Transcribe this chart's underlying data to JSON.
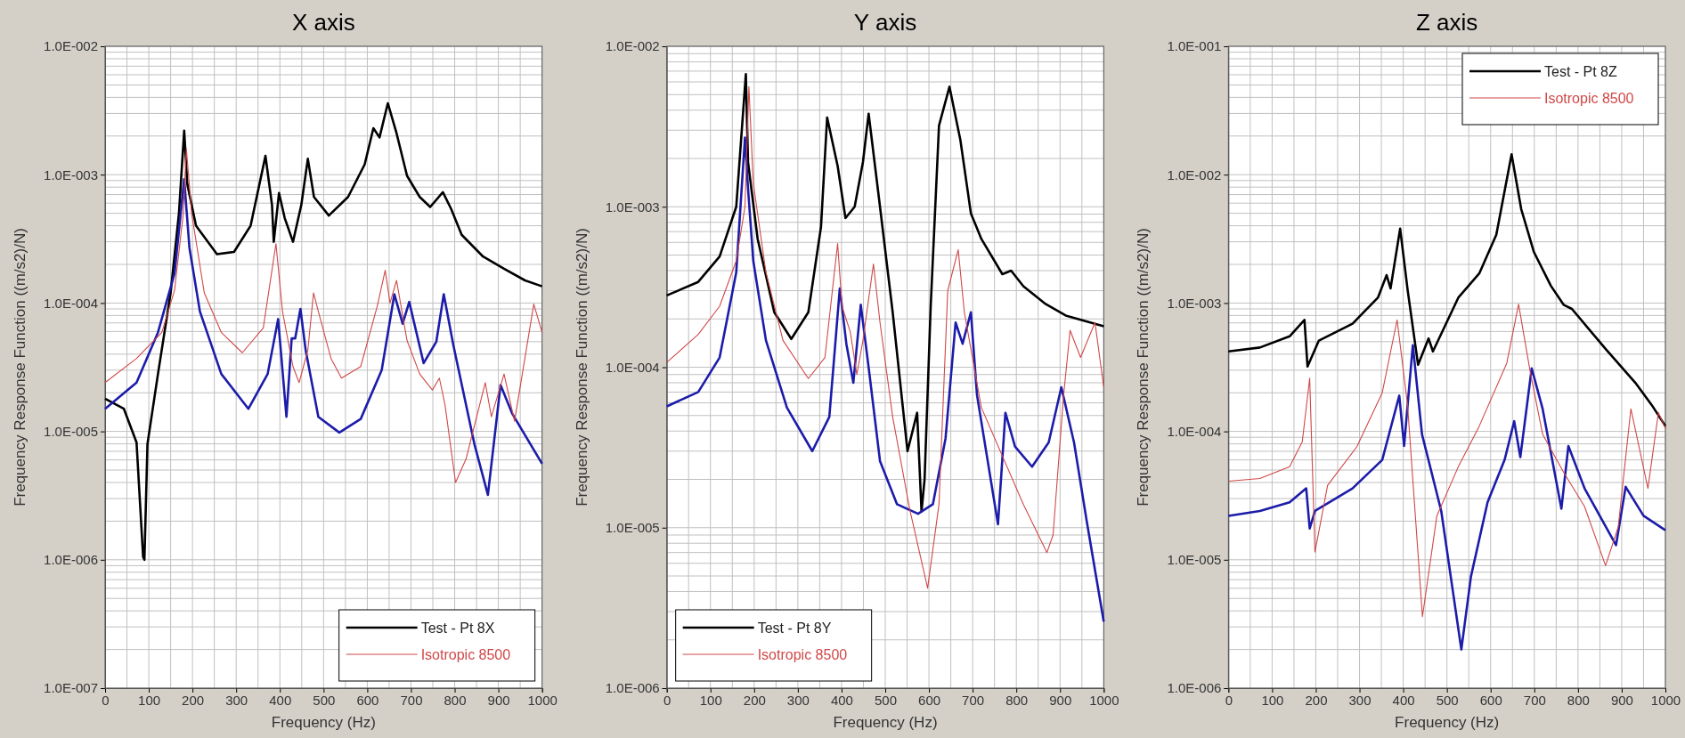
{
  "chart_data": [
    {
      "type": "line",
      "title": "X axis",
      "xlabel": "Frequency (Hz)",
      "ylabel": "Frequency Response Function ((m/s2)/N)",
      "log": "y",
      "grid": true,
      "legend": "bottom right",
      "xlim": [
        0,
        1000
      ],
      "xticks": [
        0,
        100,
        200,
        300,
        400,
        500,
        600,
        700,
        800,
        900,
        1000
      ],
      "ylim": [
        1e-07,
        0.01
      ],
      "yticks": [
        {
          "value": 1e-07,
          "label": "1.0E-007"
        },
        {
          "value": 1e-06,
          "label": "1.0E-006"
        },
        {
          "value": 1e-05,
          "label": "1.0E-005"
        },
        {
          "value": 0.0001,
          "label": "1.0E-004"
        },
        {
          "value": 0.001,
          "label": "1.0E-003"
        },
        {
          "value": 0.01,
          "label": "1.0E-002"
        }
      ],
      "series": [
        {
          "name": "Test - Pt 8X",
          "color": "#000000",
          "x": [
            0,
            43,
            72,
            87,
            90,
            97,
            121,
            150,
            169,
            181,
            188,
            208,
            256,
            295,
            333,
            367,
            382,
            386,
            398,
            411,
            430,
            449,
            464,
            478,
            512,
            556,
            594,
            614,
            628,
            647,
            667,
            691,
            720,
            744,
            773,
            792,
            816,
            865,
            913,
            961,
            1000
          ],
          "values": [
            1.8e-05,
            1.5e-05,
            8.2e-06,
            1.05e-06,
            1e-06,
            8e-06,
            2.8e-05,
            0.00012,
            0.0005,
            0.0022,
            0.00085,
            0.0004,
            0.00024,
            0.00025,
            0.0004,
            0.0014,
            0.00058,
            0.0003,
            0.00072,
            0.00046,
            0.0003,
            0.00058,
            0.00133,
            0.00067,
            0.00048,
            0.00067,
            0.0012,
            0.0023,
            0.00195,
            0.0036,
            0.0021,
            0.00098,
            0.00067,
            0.00056,
            0.00073,
            0.00054,
            0.00034,
            0.00023,
            0.000185,
            0.00015,
            0.000135
          ]
        },
        {
          "name": "Isotropic 8500",
          "color": "#d04848",
          "x": [
            0,
            72,
            130,
            159,
            179,
            186,
            198,
            227,
            266,
            314,
            362,
            391,
            406,
            430,
            444,
            464,
            477,
            488,
            517,
            541,
            585,
            623,
            641,
            652,
            667,
            691,
            720,
            749,
            765,
            778,
            802,
            826,
            870,
            884,
            913,
            937,
            981,
            1000
          ],
          "values": [
            2.4e-05,
            3.7e-05,
            5.9e-05,
            0.000126,
            0.0005,
            0.0016,
            0.0005,
            0.00012,
            5.9e-05,
            4.1e-05,
            6.4e-05,
            0.00029,
            8.6e-05,
            3.2e-05,
            2.4e-05,
            4.3e-05,
            0.00012,
            8.6e-05,
            3.7e-05,
            2.6e-05,
            3.2e-05,
            9.5e-05,
            0.00018,
            0.0001,
            0.00015,
            5.1e-05,
            2.8e-05,
            2.1e-05,
            2.6e-05,
            1.6e-05,
            4e-06,
            6.1e-06,
            2.4e-05,
            1.3e-05,
            2.8e-05,
            1.2e-05,
            9.8e-05,
            5.9e-05
          ]
        },
        {
          "color": "#1c1caa",
          "x": [
            0,
            72,
            121,
            159,
            181,
            193,
            217,
            266,
            328,
            372,
            396,
            415,
            427,
            435,
            447,
            459,
            488,
            536,
            585,
            633,
            662,
            681,
            696,
            729,
            758,
            775,
            797,
            845,
            876,
            905,
            932,
            1000
          ],
          "values": [
            1.5e-05,
            2.4e-05,
            5.9e-05,
            0.00017,
            0.00092,
            0.00027,
            8.6e-05,
            2.8e-05,
            1.5e-05,
            2.8e-05,
            7.5e-05,
            1.3e-05,
            5.3e-05,
            5.3e-05,
            9e-05,
            4.3e-05,
            1.3e-05,
            9.8e-06,
            1.25e-05,
            3e-05,
            0.000117,
            6.9e-05,
            0.000102,
            3.4e-05,
            5e-05,
            0.000117,
            4.7e-05,
            8e-06,
            3.2e-06,
            2.3e-05,
            1.37e-05,
            5.6e-06
          ]
        }
      ]
    },
    {
      "type": "line",
      "title": "Y axis",
      "xlabel": "Frequency (Hz)",
      "ylabel": "Frequency Response Function ((m/s2)/N)",
      "log": "y",
      "grid": true,
      "legend": "bottom left",
      "xlim": [
        0,
        1000
      ],
      "xticks": [
        0,
        100,
        200,
        300,
        400,
        500,
        600,
        700,
        800,
        900,
        1000
      ],
      "ylim": [
        1e-06,
        0.01
      ],
      "yticks": [
        {
          "value": 1e-06,
          "label": "1.0E-006"
        },
        {
          "value": 1e-05,
          "label": "1.0E-005"
        },
        {
          "value": 0.0001,
          "label": "1.0E-004"
        },
        {
          "value": 0.001,
          "label": "1.0E-003"
        },
        {
          "value": 0.01,
          "label": "1.0E-002"
        }
      ],
      "series": [
        {
          "name": "Test - Pt 8Y",
          "color": "#000000",
          "x": [
            0,
            72,
            121,
            159,
            181,
            186,
            208,
            246,
            285,
            324,
            353,
            367,
            391,
            409,
            430,
            449,
            462,
            488,
            517,
            551,
            573,
            583,
            590,
            604,
            623,
            647,
            672,
            696,
            720,
            768,
            788,
            816,
            865,
            913,
            1000
          ],
          "values": [
            0.00028,
            0.00034,
            0.00049,
            0.001,
            0.0067,
            0.0019,
            0.00063,
            0.00022,
            0.00015,
            0.00022,
            0.00075,
            0.0036,
            0.0018,
            0.00085,
            0.001,
            0.0019,
            0.0038,
            0.001,
            0.00022,
            3e-05,
            5.2e-05,
            1.26e-05,
            2e-05,
            0.00024,
            0.0032,
            0.0056,
            0.0026,
            0.00091,
            0.00063,
            0.00038,
            0.0004,
            0.00032,
            0.00025,
            0.00021,
            0.00018
          ]
        },
        {
          "name": "Isotropic 8500",
          "color": "#d04848",
          "x": [
            0,
            72,
            121,
            159,
            179,
            188,
            198,
            227,
            266,
            324,
            362,
            391,
            401,
            420,
            435,
            449,
            473,
            488,
            517,
            556,
            597,
            623,
            643,
            667,
            681,
            720,
            768,
            816,
            870,
            884,
            908,
            923,
            947,
            980,
            1000
          ],
          "values": [
            0.000107,
            0.00016,
            0.00024,
            0.00046,
            0.001,
            0.0056,
            0.0014,
            0.00039,
            0.000147,
            8.5e-05,
            0.000115,
            0.00059,
            0.00024,
            0.000166,
            9e-05,
            0.000147,
            0.00044,
            0.00019,
            4.9e-05,
            1.3e-05,
            4.2e-06,
            1.4e-05,
            0.0003,
            0.00054,
            0.00022,
            5.6e-05,
            2.8e-05,
            1.4e-05,
            7e-06,
            9e-06,
            6.6e-05,
            0.00017,
            0.000115,
            0.00019,
            7.5e-05
          ]
        },
        {
          "color": "#1c1caa",
          "x": [
            0,
            72,
            121,
            159,
            179,
            186,
            198,
            227,
            275,
            333,
            372,
            396,
            411,
            427,
            444,
            464,
            488,
            527,
            575,
            609,
            638,
            661,
            677,
            696,
            710,
            758,
            775,
            797,
            836,
            874,
            903,
            932,
            961,
            1000
          ],
          "values": [
            5.7e-05,
            7e-05,
            0.000115,
            0.00039,
            0.0027,
            0.0013,
            0.00046,
            0.000147,
            5.6e-05,
            3e-05,
            4.9e-05,
            0.00031,
            0.00014,
            8e-05,
            0.000245,
            9e-05,
            2.6e-05,
            1.4e-05,
            1.22e-05,
            1.4e-05,
            3.6e-05,
            0.00019,
            0.00014,
            0.00022,
            6.7e-05,
            1.05e-05,
            5.2e-05,
            3.2e-05,
            2.4e-05,
            3.4e-05,
            7.5e-05,
            3.4e-05,
            1.1e-05,
            2.6e-06
          ]
        }
      ]
    },
    {
      "type": "line",
      "title": "Z axis",
      "xlabel": "Frequency (Hz)",
      "ylabel": "Frequency Response Function ((m/s2)/N)",
      "log": "y",
      "grid": true,
      "legend": "top right",
      "xlim": [
        0,
        1000
      ],
      "xticks": [
        0,
        100,
        200,
        300,
        400,
        500,
        600,
        700,
        800,
        900,
        1000
      ],
      "ylim": [
        1e-06,
        0.1
      ],
      "yticks": [
        {
          "value": 1e-06,
          "label": "1.0E-006"
        },
        {
          "value": 1e-05,
          "label": "1.0E-005"
        },
        {
          "value": 0.0001,
          "label": "1.0E-004"
        },
        {
          "value": 0.001,
          "label": "1.0E-003"
        },
        {
          "value": 0.01,
          "label": "1.0E-002"
        },
        {
          "value": 0.1,
          "label": "1.0E-001"
        }
      ],
      "series": [
        {
          "name": "Test - Pt 8Z",
          "color": "#000000",
          "x": [
            0,
            72,
            140,
            174,
            181,
            207,
            284,
            342,
            362,
            371,
            393,
            410,
            434,
            458,
            468,
            526,
            574,
            613,
            648,
            670,
            699,
            738,
            767,
            786,
            863,
            931,
            969,
            1000
          ],
          "values": [
            0.00042,
            0.00045,
            0.00055,
            0.00074,
            0.00032,
            0.00051,
            0.00069,
            0.0011,
            0.00165,
            0.0013,
            0.0038,
            0.00127,
            0.00033,
            0.00053,
            0.00042,
            0.0011,
            0.0017,
            0.0034,
            0.0144,
            0.0054,
            0.0025,
            0.00136,
            0.00097,
            0.0009,
            0.00044,
            0.00024,
            0.00016,
            0.00011
          ]
        },
        {
          "name": "Isotropic 8500",
          "color": "#d04848",
          "x": [
            0,
            72,
            140,
            169,
            186,
            198,
            227,
            294,
            352,
            386,
            410,
            444,
            477,
            526,
            574,
            637,
            664,
            690,
            719,
            767,
            815,
            863,
            892,
            921,
            960,
            984,
            1000
          ],
          "values": [
            4.1e-05,
            4.3e-05,
            5.3e-05,
            8.3e-05,
            0.00026,
            1.15e-05,
            3.8e-05,
            7.6e-05,
            0.0002,
            0.00074,
            0.00016,
            3.6e-06,
            2.2e-05,
            5.3e-05,
            0.00011,
            0.00034,
            0.00098,
            0.0003,
            9.5e-05,
            4.8e-05,
            2.6e-05,
            9e-06,
            1.8e-05,
            0.00015,
            3.6e-05,
            0.00014,
            0.000105
          ]
        },
        {
          "color": "#1c1caa",
          "x": [
            0,
            72,
            140,
            178,
            186,
            198,
            284,
            352,
            391,
            402,
            422,
            443,
            487,
            533,
            555,
            593,
            632,
            654,
            668,
            694,
            719,
            762,
            778,
            815,
            887,
            909,
            950,
            1000
          ],
          "values": [
            2.2e-05,
            2.4e-05,
            2.8e-05,
            3.6e-05,
            1.75e-05,
            2.4e-05,
            3.6e-05,
            6e-05,
            0.00019,
            7.7e-05,
            0.00047,
            9.5e-05,
            2.4e-05,
            2e-06,
            7.4e-06,
            2.8e-05,
            6e-05,
            0.00012,
            6.3e-05,
            0.00031,
            0.00015,
            2.5e-05,
            7.7e-05,
            3.6e-05,
            1.3e-05,
            3.7e-05,
            2.2e-05,
            1.7e-05
          ]
        }
      ]
    }
  ]
}
